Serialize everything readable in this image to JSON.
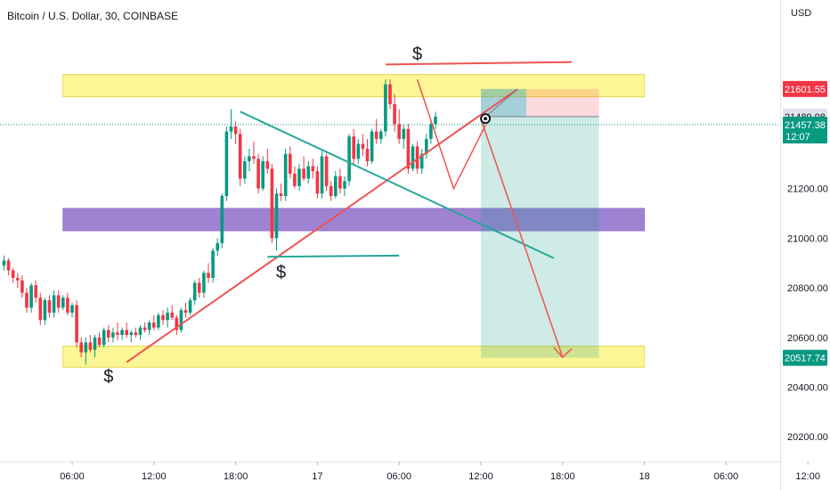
{
  "chart_data": {
    "type": "candlestick",
    "title": "Bitcoin / U.S. Dollar, 30, COINBASE",
    "y_unit": "USD",
    "ylim": [
      20100,
      21960
    ],
    "y_ticks": [
      21200,
      21000,
      20800,
      20600,
      20400,
      20200
    ],
    "y_tick_labels": [
      "21200.00",
      "21000.00",
      "20800.00",
      "20600.00",
      "20400.00",
      "20200.00"
    ],
    "x_ticks": [
      {
        "label": "06:00",
        "slot": 15
      },
      {
        "label": "12:00",
        "slot": 33
      },
      {
        "label": "18:00",
        "slot": 51
      },
      {
        "label": "17",
        "slot": 69
      },
      {
        "label": "06:00",
        "slot": 87
      },
      {
        "label": "12:00",
        "slot": 105
      },
      {
        "label": "18:00",
        "slot": 123
      },
      {
        "label": "18",
        "slot": 141
      },
      {
        "label": "06:00",
        "slot": 159
      },
      {
        "label": "12:00",
        "slot": 177
      }
    ],
    "price_badges": [
      {
        "label": "21601.55",
        "value": 21601.55,
        "color": "#f23645",
        "text_color": "#ffffff"
      },
      {
        "label": "21489.98",
        "value": 21489.98,
        "color": "#e0e3eb",
        "text_color": "#131722"
      },
      {
        "label": "21457.38",
        "sub": "12:07",
        "value": 21457.38,
        "color": "#089981",
        "text_color": "#ffffff"
      },
      {
        "label": "20517.74",
        "value": 20517.74,
        "color": "#089981",
        "text_color": "#ffffff"
      }
    ],
    "current_price": 21457.38,
    "candles": [
      [
        20890,
        20930,
        20870,
        20910
      ],
      [
        20910,
        20920,
        20850,
        20870
      ],
      [
        20870,
        20880,
        20820,
        20840
      ],
      [
        20840,
        20860,
        20800,
        20830
      ],
      [
        20830,
        20850,
        20760,
        20780
      ],
      [
        20780,
        20800,
        20700,
        20720
      ],
      [
        20720,
        20820,
        20700,
        20810
      ],
      [
        20810,
        20830,
        20740,
        20760
      ],
      [
        20760,
        20780,
        20650,
        20670
      ],
      [
        20670,
        20760,
        20650,
        20750
      ],
      [
        20750,
        20770,
        20680,
        20700
      ],
      [
        20700,
        20790,
        20680,
        20770
      ],
      [
        20770,
        20790,
        20700,
        20720
      ],
      [
        20720,
        20770,
        20710,
        20760
      ],
      [
        20760,
        20780,
        20690,
        20700
      ],
      [
        20700,
        20740,
        20680,
        20730
      ],
      [
        20730,
        20750,
        20560,
        20580
      ],
      [
        20580,
        20600,
        20520,
        20540
      ],
      [
        20540,
        20600,
        20490,
        20580
      ],
      [
        20580,
        20610,
        20540,
        20550
      ],
      [
        20550,
        20610,
        20520,
        20600
      ],
      [
        20600,
        20620,
        20560,
        20570
      ],
      [
        20570,
        20640,
        20560,
        20630
      ],
      [
        20630,
        20650,
        20580,
        20600
      ],
      [
        20600,
        20640,
        20580,
        20620
      ],
      [
        20620,
        20660,
        20590,
        20610
      ],
      [
        20610,
        20640,
        20590,
        20630
      ],
      [
        20630,
        20660,
        20600,
        20610
      ],
      [
        20610,
        20630,
        20580,
        20620
      ],
      [
        20620,
        20640,
        20600,
        20610
      ],
      [
        20610,
        20650,
        20590,
        20640
      ],
      [
        20640,
        20660,
        20620,
        20630
      ],
      [
        20630,
        20670,
        20610,
        20660
      ],
      [
        20660,
        20690,
        20630,
        20640
      ],
      [
        20640,
        20700,
        20630,
        20690
      ],
      [
        20690,
        20710,
        20650,
        20670
      ],
      [
        20670,
        20720,
        20640,
        20700
      ],
      [
        20700,
        20730,
        20670,
        20680
      ],
      [
        20680,
        20690,
        20610,
        20630
      ],
      [
        20630,
        20720,
        20620,
        20710
      ],
      [
        20710,
        20740,
        20680,
        20700
      ],
      [
        20700,
        20760,
        20690,
        20750
      ],
      [
        20750,
        20830,
        20730,
        20820
      ],
      [
        20820,
        20840,
        20760,
        20780
      ],
      [
        20780,
        20870,
        20760,
        20860
      ],
      [
        20860,
        20900,
        20820,
        20840
      ],
      [
        20840,
        20960,
        20820,
        20950
      ],
      [
        20950,
        21000,
        20930,
        20980
      ],
      [
        20980,
        21180,
        20960,
        21170
      ],
      [
        21170,
        21450,
        21150,
        21430
      ],
      [
        21430,
        21520,
        21400,
        21450
      ],
      [
        21450,
        21470,
        21380,
        21420
      ],
      [
        21420,
        21440,
        21210,
        21240
      ],
      [
        21240,
        21330,
        21220,
        21310
      ],
      [
        21310,
        21360,
        21270,
        21330
      ],
      [
        21330,
        21390,
        21300,
        21320
      ],
      [
        21320,
        21340,
        21180,
        21200
      ],
      [
        21200,
        21330,
        21190,
        21310
      ],
      [
        21310,
        21360,
        21260,
        21280
      ],
      [
        21280,
        21300,
        20980,
        21000
      ],
      [
        21000,
        21200,
        20950,
        21180
      ],
      [
        21180,
        21220,
        21150,
        21170
      ],
      [
        21170,
        21360,
        21150,
        21340
      ],
      [
        21340,
        21370,
        21240,
        21260
      ],
      [
        21260,
        21290,
        21200,
        21210
      ],
      [
        21210,
        21300,
        21190,
        21280
      ],
      [
        21280,
        21330,
        21230,
        21240
      ],
      [
        21240,
        21310,
        21220,
        21290
      ],
      [
        21290,
        21320,
        21240,
        21270
      ],
      [
        21270,
        21290,
        21160,
        21180
      ],
      [
        21180,
        21350,
        21160,
        21330
      ],
      [
        21330,
        21340,
        21190,
        21210
      ],
      [
        21210,
        21230,
        21150,
        21170
      ],
      [
        21170,
        21270,
        21160,
        21250
      ],
      [
        21250,
        21280,
        21180,
        21200
      ],
      [
        21200,
        21250,
        21170,
        21230
      ],
      [
        21230,
        21420,
        21210,
        21410
      ],
      [
        21410,
        21440,
        21300,
        21320
      ],
      [
        21320,
        21400,
        21300,
        21380
      ],
      [
        21380,
        21420,
        21330,
        21360
      ],
      [
        21360,
        21400,
        21290,
        21310
      ],
      [
        21310,
        21440,
        21300,
        21430
      ],
      [
        21430,
        21480,
        21380,
        21400
      ],
      [
        21400,
        21440,
        21380,
        21430
      ],
      [
        21430,
        21640,
        21410,
        21620
      ],
      [
        21620,
        21640,
        21520,
        21540
      ],
      [
        21540,
        21580,
        21430,
        21460
      ],
      [
        21460,
        21520,
        21380,
        21400
      ],
      [
        21400,
        21460,
        21360,
        21440
      ],
      [
        21440,
        21460,
        21260,
        21280
      ],
      [
        21280,
        21380,
        21270,
        21370
      ],
      [
        21370,
        21390,
        21260,
        21280
      ],
      [
        21280,
        21360,
        21260,
        21340
      ],
      [
        21340,
        21420,
        21320,
        21400
      ],
      [
        21400,
        21470,
        21380,
        21460
      ],
      [
        21460,
        21510,
        21440,
        21490
      ]
    ]
  }
}
